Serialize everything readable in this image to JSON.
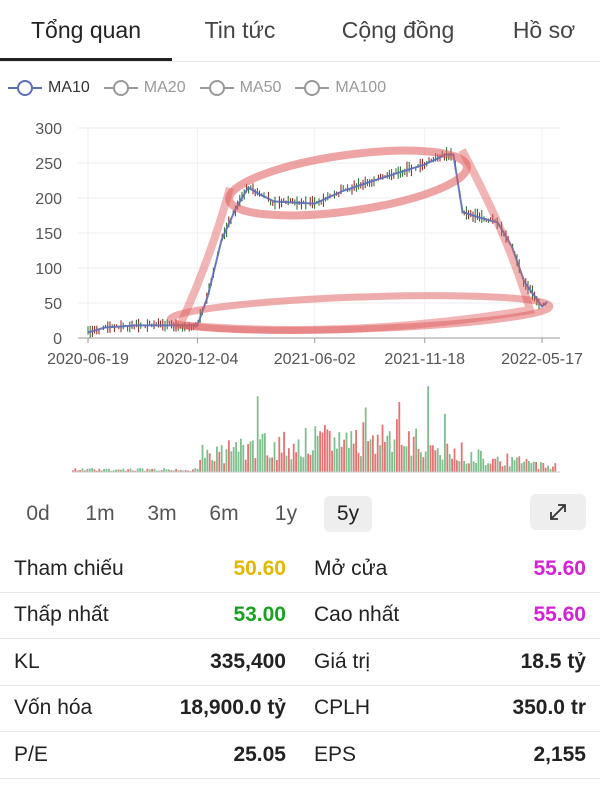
{
  "tabs": [
    {
      "label": "Tổng quan"
    },
    {
      "label": "Tin tức"
    },
    {
      "label": "Cộng đồng"
    },
    {
      "label": "Hồ sơ"
    }
  ],
  "ma_legend": [
    {
      "label": "MA10",
      "active": true
    },
    {
      "label": "MA20",
      "active": false
    },
    {
      "label": "MA50",
      "active": false
    },
    {
      "label": "MA100",
      "active": false
    }
  ],
  "colors": {
    "ma10": "#5b6fb8",
    "up": "#2e8b3a",
    "down": "#d32f2f",
    "annotation": "#e05a5a",
    "volume_up": "#7fbf8f",
    "volume_down": "#e57373"
  },
  "periods": [
    "0d",
    "1m",
    "3m",
    "6m",
    "1y",
    "5y"
  ],
  "active_period": "5y",
  "expand_icon": "expand-diagonal-icon",
  "stats": {
    "tham_chieu": {
      "label": "Tham chiếu",
      "value": "50.60"
    },
    "mo_cua": {
      "label": "Mở cửa",
      "value": "55.60"
    },
    "thap_nhat": {
      "label": "Thấp nhất",
      "value": "53.00"
    },
    "cao_nhat": {
      "label": "Cao nhất",
      "value": "55.60"
    },
    "kl": {
      "label": "KL",
      "value": "335,400"
    },
    "gia_tri": {
      "label": "Giá trị",
      "value": "18.5 tỷ"
    },
    "von_hoa": {
      "label": "Vốn hóa",
      "value": "18,900.0 tỷ"
    },
    "cplh": {
      "label": "CPLH",
      "value": "350.0 tr"
    },
    "pe": {
      "label": "P/E",
      "value": "25.05"
    },
    "eps": {
      "label": "EPS",
      "value": "2,155"
    }
  },
  "chart_data": {
    "type": "line",
    "title": "",
    "xlabel": "",
    "ylabel": "",
    "ylim": [
      0,
      300
    ],
    "yticks": [
      0,
      50,
      100,
      150,
      200,
      250,
      300
    ],
    "xticks": [
      "2020-06-19",
      "2020-12-04",
      "2021-06-02",
      "2021-11-18",
      "2022-05-17"
    ],
    "grid": true,
    "legend": "top-left",
    "series": [
      {
        "name": "MA10",
        "x": [
          "2020-06-19",
          "2020-07-15",
          "2020-09-01",
          "2020-11-01",
          "2020-12-04",
          "2020-12-20",
          "2021-01-10",
          "2021-02-01",
          "2021-02-20",
          "2021-03-10",
          "2021-04-01",
          "2021-06-02",
          "2021-07-15",
          "2021-09-01",
          "2021-10-15",
          "2021-11-18",
          "2021-12-20",
          "2022-01-01",
          "2022-01-15",
          "2022-02-10",
          "2022-03-10",
          "2022-04-01",
          "2022-04-20",
          "2022-05-17",
          "2022-05-25"
        ],
        "values": [
          8,
          15,
          18,
          18,
          18,
          60,
          140,
          185,
          215,
          205,
          195,
          192,
          210,
          225,
          238,
          248,
          262,
          262,
          180,
          172,
          165,
          130,
          80,
          45,
          52
        ]
      }
    ],
    "volume": {
      "x": [
        "2020-06-19",
        "2020-12-04",
        "2021-03-01",
        "2021-06-02",
        "2021-09-15",
        "2021-11-18",
        "2022-02-01",
        "2022-05-17"
      ],
      "relative_values": [
        0.05,
        0.2,
        0.3,
        0.35,
        0.45,
        0.3,
        0.2,
        0.08
      ]
    },
    "annotations": [
      "hand-drawn red ellipse around 2021 plateau",
      "hand-drawn red ellipse near baseline"
    ]
  }
}
